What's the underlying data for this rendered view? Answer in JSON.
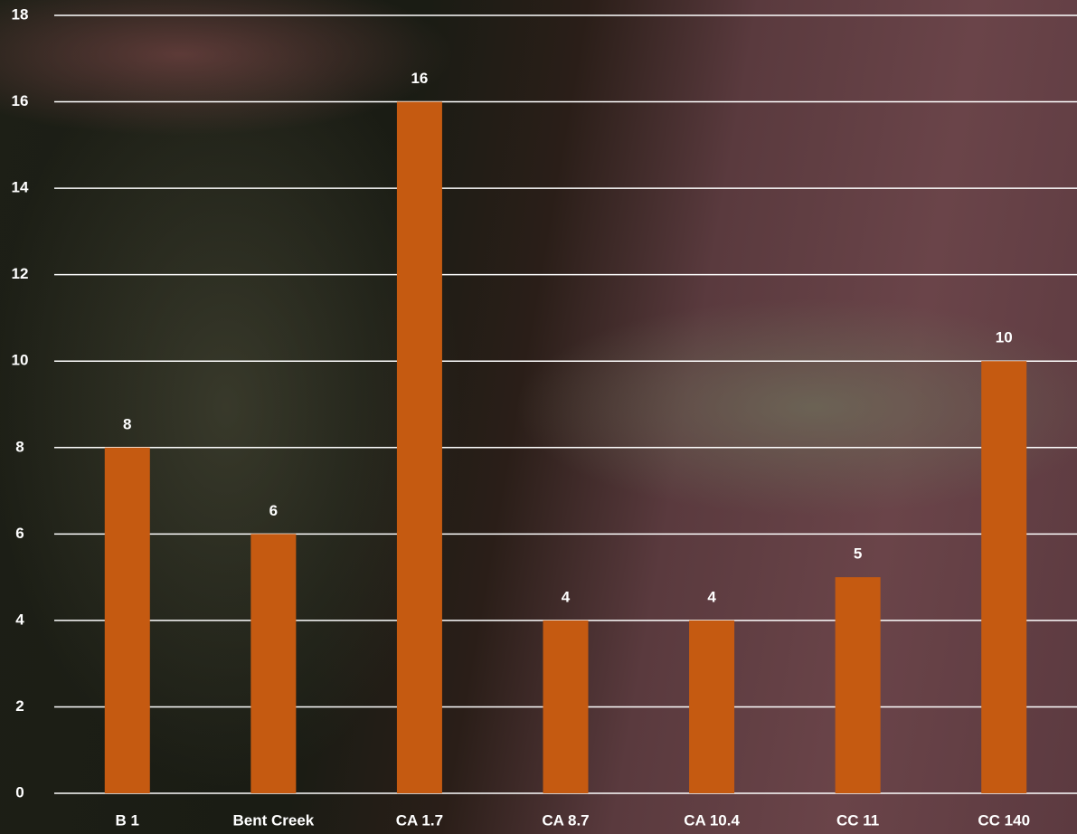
{
  "chart_data": {
    "type": "bar",
    "categories": [
      "B 1",
      "Bent Creek",
      "CA 1.7",
      "CA 8.7",
      "CA 10.4",
      "CC 11",
      "CC 140"
    ],
    "values": [
      8,
      6,
      16,
      4,
      4,
      5,
      10
    ],
    "color": "#c55a11",
    "ylim": [
      0,
      18
    ],
    "yticks": [
      0,
      2,
      4,
      6,
      8,
      10,
      12,
      14,
      16,
      18
    ],
    "grid": true
  }
}
